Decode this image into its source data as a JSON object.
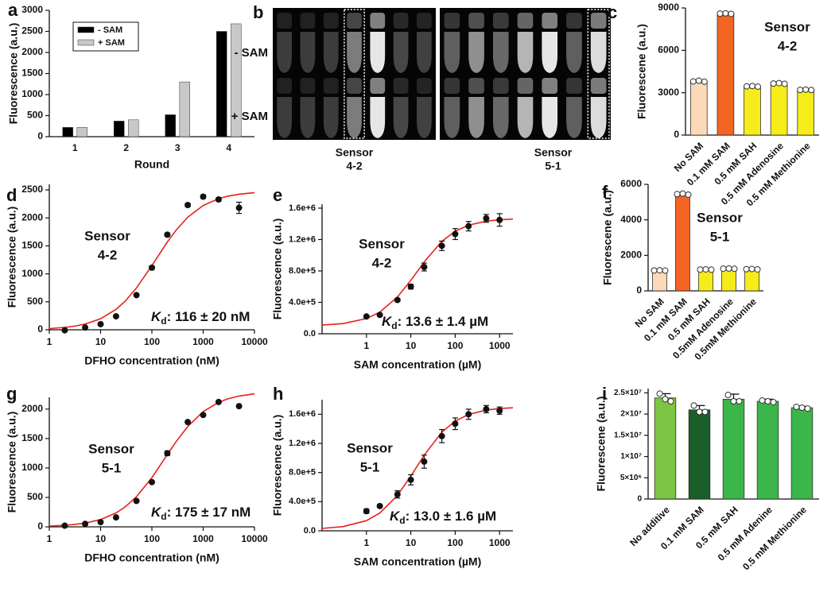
{
  "chart_data": [
    {
      "panel_label": "a",
      "type": "bar",
      "xlabel": "Round",
      "ylabel": "Fluorescence (a.u.)",
      "categories": [
        "1",
        "2",
        "3",
        "4"
      ],
      "series": [
        {
          "name": "- SAM",
          "color": "#000000",
          "values": [
            220,
            370,
            520,
            2500
          ]
        },
        {
          "name": "+ SAM",
          "color": "#c8c8c8",
          "values": [
            220,
            400,
            1300,
            2680
          ]
        }
      ],
      "ylim": [
        0,
        3000
      ],
      "yticks": [
        0,
        500,
        1000,
        1500,
        2000,
        2500,
        3000
      ],
      "legend": "upper left"
    },
    {
      "panel_label": "b",
      "type": "image",
      "row_labels": [
        "- SAM",
        "+ SAM"
      ],
      "column_labels": [
        [
          "Sensor",
          "4-2"
        ],
        [
          "Sensor",
          "5-1"
        ]
      ]
    },
    {
      "panel_label": "c",
      "type": "bar",
      "ylabel": "Fluorescene (a.u.)",
      "categories": [
        "No SAM",
        "0.1 mM SAM",
        "0.5 mM SAH",
        "0.5 mM Adenosine",
        "0.5 mM Methionine"
      ],
      "values": [
        3800,
        8600,
        3450,
        3650,
        3200
      ],
      "colors": [
        "#fcd9b8",
        "#f26522",
        "#f5ec1a",
        "#f5ec1a",
        "#f5ec1a"
      ],
      "points": [
        [
          3800,
          3850,
          3780
        ],
        [
          8600,
          8620,
          8580
        ],
        [
          3450,
          3470,
          3430
        ],
        [
          3650,
          3680,
          3630
        ],
        [
          3200,
          3220,
          3190
        ]
      ],
      "ylim": [
        0,
        9000
      ],
      "yticks": [
        0,
        3000,
        6000,
        9000
      ],
      "annotation": [
        "Sensor",
        "4-2"
      ]
    },
    {
      "panel_label": "d",
      "type": "scatter",
      "xlabel": "DFHO concentration (nM)",
      "ylabel": "Fluorescence (a.u.)",
      "xscale": "log",
      "xlim": [
        1,
        10000
      ],
      "xticks": [
        1,
        10,
        100,
        1000,
        10000
      ],
      "ylim": [
        0,
        2600
      ],
      "yticks": [
        0,
        500,
        1000,
        1500,
        2000,
        2500
      ],
      "x": [
        2,
        5,
        10,
        20,
        50,
        100,
        200,
        500,
        1000,
        2000,
        5000
      ],
      "y": [
        -10,
        40,
        100,
        240,
        620,
        1110,
        1700,
        2230,
        2380,
        2330,
        2180
      ],
      "yerr": [
        0,
        0,
        0,
        0,
        0,
        30,
        30,
        30,
        30,
        30,
        100
      ],
      "fit": {
        "color": "#e8221a",
        "x": [
          1,
          2,
          3,
          5,
          10,
          20,
          30,
          50,
          100,
          200,
          300,
          500,
          1000,
          2000,
          3000,
          5000,
          10000
        ],
        "y": [
          21,
          42,
          63,
          102,
          197,
          365,
          510,
          747,
          1148,
          1570,
          1788,
          2013,
          2222,
          2344,
          2388,
          2424,
          2452
        ]
      },
      "annotation": [
        "Sensor",
        "4-2"
      ],
      "kd": {
        "symbol": "K",
        "sub": "d",
        "text": ": 116 ± 20 nM"
      }
    },
    {
      "panel_label": "e",
      "type": "scatter",
      "xlabel": "SAM concentration (µM)",
      "ylabel": "Fluorescence (a.u.)",
      "xscale": "log",
      "xlim": [
        0.1,
        2000
      ],
      "xticks": [
        1,
        10,
        100,
        1000
      ],
      "ylim": [
        0,
        1650000
      ],
      "yticks": [
        {
          "value": 0,
          "label": "0.0"
        },
        {
          "value": 400000,
          "label": "4.0e+5"
        },
        {
          "value": 800000,
          "label": "8.0e+5"
        },
        {
          "value": 1200000,
          "label": "1.2e+6"
        },
        {
          "value": 1600000,
          "label": "1.6e+6"
        }
      ],
      "x": [
        1,
        2,
        5,
        10,
        20,
        50,
        100,
        200,
        500,
        1000
      ],
      "y": [
        220000,
        240000,
        430000,
        600000,
        850000,
        1120000,
        1270000,
        1370000,
        1470000,
        1450000
      ],
      "yerr": [
        0,
        0,
        20000,
        30000,
        50000,
        60000,
        70000,
        60000,
        50000,
        80000
      ],
      "fit": {
        "color": "#e8221a",
        "x": [
          0.1,
          0.3,
          1,
          2,
          5,
          10,
          20,
          50,
          100,
          200,
          500,
          1000,
          2000
        ],
        "y": [
          110000,
          129600,
          193800,
          275600,
          468300,
          680500,
          915500,
          1177000,
          1306000,
          1383000,
          1434000,
          1452000,
          1461000
        ]
      },
      "annotation": [
        "Sensor",
        "4-2"
      ],
      "kd": {
        "symbol": "K",
        "sub": "d",
        "text": ": 13.6 ± 1.4 µM"
      }
    },
    {
      "panel_label": "f",
      "type": "bar",
      "ylabel": "Fluorescene (a.u.)",
      "categories": [
        "No SAM",
        "0.1 mM SAM",
        "0.5 mM SAH",
        "0.5mM Adenosine",
        "0.5mM Methionine"
      ],
      "values": [
        1150,
        5450,
        1200,
        1250,
        1220
      ],
      "colors": [
        "#fcd9b8",
        "#f26522",
        "#f5ec1a",
        "#f5ec1a",
        "#f5ec1a"
      ],
      "points": [
        [
          1150,
          1160,
          1140
        ],
        [
          5450,
          5480,
          5420
        ],
        [
          1200,
          1210,
          1190
        ],
        [
          1250,
          1260,
          1240
        ],
        [
          1220,
          1230,
          1210
        ]
      ],
      "ylim": [
        0,
        6000
      ],
      "yticks": [
        0,
        2000,
        4000,
        6000
      ],
      "annotation": [
        "Sensor",
        "5-1"
      ]
    },
    {
      "panel_label": "g",
      "type": "scatter",
      "xlabel": "DFHO concentration (nM)",
      "ylabel": "Fluorescence (a.u.)",
      "xscale": "log",
      "xlim": [
        1,
        10000
      ],
      "xticks": [
        1,
        10,
        100,
        1000,
        10000
      ],
      "ylim": [
        0,
        2200
      ],
      "yticks": [
        0,
        500,
        1000,
        1500,
        2000
      ],
      "x": [
        2,
        5,
        10,
        20,
        50,
        100,
        200,
        500,
        1000,
        2000,
        5000
      ],
      "y": [
        20,
        50,
        80,
        160,
        440,
        760,
        1250,
        1780,
        1900,
        2120,
        2050
      ],
      "yerr": [
        0,
        0,
        0,
        0,
        0,
        0,
        40,
        0,
        0,
        0,
        0
      ],
      "fit": {
        "color": "#e8221a",
        "x": [
          1,
          2,
          3,
          5,
          10,
          20,
          30,
          50,
          100,
          200,
          300,
          500,
          1000,
          2000,
          3000,
          5000,
          10000
        ],
        "y": [
          13,
          26,
          39,
          64,
          124,
          236,
          337,
          511,
          836,
          1227,
          1453,
          1704,
          1957,
          2115,
          2173,
          2222,
          2260
        ]
      },
      "annotation": [
        "Sensor",
        "5-1"
      ],
      "kd": {
        "symbol": "K",
        "sub": "d",
        "text": ": 175 ± 17 nM"
      }
    },
    {
      "panel_label": "h",
      "type": "scatter",
      "xlabel": "SAM concentration (µM)",
      "ylabel": "Fluorescence (a.u.)",
      "xscale": "log",
      "xlim": [
        0.1,
        2000
      ],
      "xticks": [
        1,
        10,
        100,
        1000
      ],
      "ylim": [
        0,
        1800000
      ],
      "yticks": [
        {
          "value": 0,
          "label": "0.0"
        },
        {
          "value": 400000,
          "label": "4.0e+5"
        },
        {
          "value": 800000,
          "label": "8.0e+5"
        },
        {
          "value": 1200000,
          "label": "1.2e+6"
        },
        {
          "value": 1600000,
          "label": "1.6e+6"
        }
      ],
      "x": [
        1,
        2,
        5,
        10,
        20,
        50,
        100,
        200,
        500,
        1000
      ],
      "y": [
        270000,
        340000,
        500000,
        700000,
        950000,
        1300000,
        1470000,
        1600000,
        1670000,
        1650000
      ],
      "yerr": [
        30000,
        20000,
        50000,
        70000,
        90000,
        90000,
        80000,
        70000,
        50000,
        50000
      ],
      "fit": {
        "color": "#e8221a",
        "x": [
          0.1,
          0.3,
          1,
          2,
          5,
          10,
          20,
          50,
          100,
          200,
          500,
          1000,
          2000
        ],
        "y": [
          32800,
          57900,
          140000,
          244000,
          486700,
          750400,
          1038200,
          1353300,
          1506700,
          1597500,
          1657400,
          1678400,
          1689200
        ]
      },
      "annotation": [
        "Sensor",
        "5-1"
      ],
      "kd": {
        "symbol": "K",
        "sub": "d",
        "text": ": 13.0 ± 1.6 µM"
      }
    },
    {
      "panel_label": "i",
      "type": "bar",
      "ylabel": "Fluorescene (a.u.)",
      "categories": [
        "No additive",
        "0.1 mM SAM",
        "0.5 mM SAH",
        "0.5 mM Adenine",
        "0.5 mM Methionine"
      ],
      "values": [
        23800000,
        21000000,
        23500000,
        23000000,
        21500000
      ],
      "errors": [
        1000000,
        1000000,
        1200000,
        500000,
        300000
      ],
      "colors": [
        "#7cc542",
        "#1a5e2a",
        "#3cb54a",
        "#3cb54a",
        "#3cb54a"
      ],
      "points": [
        [
          24800000,
          23500000,
          23000000
        ],
        [
          22000000,
          20500000,
          20500000
        ],
        [
          24500000,
          23000000,
          23000000
        ],
        [
          23200000,
          23000000,
          22800000
        ],
        [
          21700000,
          21500000,
          21300000
        ]
      ],
      "ylim": [
        0,
        26000000
      ],
      "yticks": [
        0,
        {
          "value": 5000000,
          "label": "5×10⁶"
        },
        {
          "value": 10000000,
          "label": "1×10⁷"
        },
        {
          "value": 15000000,
          "label": "1.5×10⁷"
        },
        {
          "value": 20000000,
          "label": "2×10⁷"
        },
        {
          "value": 25000000,
          "label": "2.5×10⁷"
        }
      ]
    }
  ]
}
